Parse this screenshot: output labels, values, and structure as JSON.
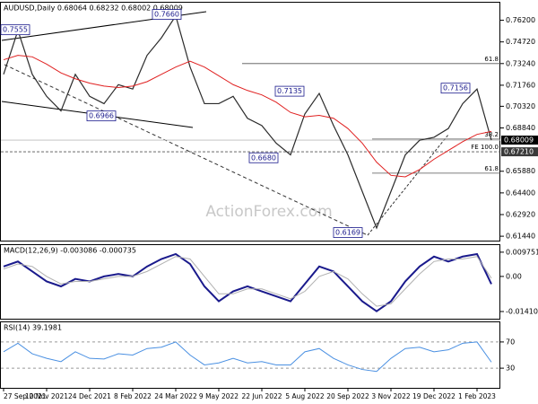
{
  "chart_data": [
    {
      "type": "line",
      "title": "AUDUSD,Daily  0.68064 0.68232 0.68002 0.68009",
      "watermark": "ActionForex.com",
      "categories": [
        "27 Sep 2021",
        null,
        null,
        "10 Nov 2021",
        null,
        null,
        "24 Dec 2021",
        null,
        null,
        "8 Feb 2022",
        null,
        null,
        "24 Mar 2022",
        null,
        null,
        "9 May 2022",
        null,
        null,
        "22 Jun 2022",
        null,
        null,
        "5 Aug 2022",
        null,
        null,
        "20 Sep 2022",
        null,
        null,
        "3 Nov 2022",
        null,
        null,
        "19 Dec 2022",
        null,
        null,
        "1 Feb 2023",
        null
      ],
      "series": [
        {
          "name": "Close",
          "color": "#2b2b2b",
          "values": [
            0.725,
            0.755,
            0.725,
            0.71,
            0.7,
            0.725,
            0.71,
            0.705,
            0.718,
            0.715,
            0.738,
            0.75,
            0.765,
            0.73,
            0.705,
            0.705,
            0.71,
            0.695,
            0.69,
            0.678,
            0.67,
            0.698,
            0.712,
            0.69,
            0.67,
            0.645,
            0.62,
            0.645,
            0.67,
            0.68,
            0.682,
            0.688,
            0.705,
            0.715,
            0.6801
          ]
        },
        {
          "name": "MA",
          "color": "#e02020",
          "values": [
            0.735,
            0.738,
            0.737,
            0.732,
            0.726,
            0.722,
            0.719,
            0.717,
            0.716,
            0.717,
            0.72,
            0.725,
            0.73,
            0.734,
            0.73,
            0.724,
            0.718,
            0.714,
            0.711,
            0.706,
            0.699,
            0.696,
            0.697,
            0.695,
            0.688,
            0.678,
            0.665,
            0.656,
            0.655,
            0.66,
            0.667,
            0.673,
            0.679,
            0.684,
            0.686
          ]
        }
      ],
      "ylim": [
        0.6114,
        0.774
      ],
      "yticks": [
        {
          "value": 0.762,
          "label": "0.76200"
        },
        {
          "value": 0.7472,
          "label": "0.74720"
        },
        {
          "value": 0.7324,
          "label": "0.73240"
        },
        {
          "value": 0.7176,
          "label": "0.71760"
        },
        {
          "value": 0.7032,
          "label": "0.70320"
        },
        {
          "value": 0.6884,
          "label": "0.68840"
        },
        {
          "value": 0.6588,
          "label": "0.65880"
        },
        {
          "value": 0.644,
          "label": "0.64400"
        },
        {
          "value": 0.6292,
          "label": "0.62920"
        },
        {
          "value": 0.6144,
          "label": "0.61440"
        }
      ],
      "levels": [
        {
          "label": "61.8",
          "value": 0.7324
        },
        {
          "label": "38.2",
          "value": 0.6808
        },
        {
          "label": "FE 100.0",
          "value": 0.6721,
          "price_label": "0.67210"
        },
        {
          "label": "61.8",
          "value": 0.6575
        }
      ],
      "last_price": {
        "value": 0.68009,
        "label": "0.68009"
      },
      "annotations": [
        {
          "label": "0.7555",
          "value": 0.7555
        },
        {
          "label": "0.7660",
          "value": 0.766
        },
        {
          "label": "0.6966",
          "value": 0.6966
        },
        {
          "label": "0.7135",
          "value": 0.7135
        },
        {
          "label": "0.6680",
          "value": 0.668
        },
        {
          "label": "0.7156",
          "value": 0.7156
        },
        {
          "label": "0.6169",
          "value": 0.6169
        }
      ]
    },
    {
      "type": "line",
      "title": "MACD(12,26,9) -0.003086 -0.000735",
      "series": [
        {
          "name": "MACD",
          "color": "#1a1a8c",
          "values": [
            0.004,
            0.006,
            0.002,
            -0.002,
            -0.004,
            -0.001,
            -0.002,
            0.0,
            0.001,
            0.0,
            0.004,
            0.007,
            0.009,
            0.005,
            -0.004,
            -0.01,
            -0.006,
            -0.004,
            -0.006,
            -0.008,
            -0.01,
            -0.003,
            0.004,
            0.002,
            -0.004,
            -0.01,
            -0.014,
            -0.01,
            -0.002,
            0.004,
            0.008,
            0.006,
            0.008,
            0.009,
            -0.003086
          ]
        },
        {
          "name": "Signal",
          "color": "#b0b0b0",
          "values": [
            0.003,
            0.005,
            0.004,
            0.0,
            -0.003,
            -0.002,
            -0.002,
            -0.001,
            0.0,
            0.0,
            0.002,
            0.005,
            0.008,
            0.007,
            0.0,
            -0.007,
            -0.007,
            -0.005,
            -0.005,
            -0.007,
            -0.009,
            -0.006,
            0.0,
            0.002,
            -0.001,
            -0.007,
            -0.012,
            -0.011,
            -0.005,
            0.001,
            0.006,
            0.007,
            0.007,
            0.008,
            -0.000735
          ]
        }
      ],
      "ylim": [
        -0.017,
        0.0126
      ],
      "yticks": [
        0.009751,
        {
          "value": 0,
          "label": "0.00"
        },
        -0.014107
      ]
    },
    {
      "type": "line",
      "title": "RSI(14) 39.1981",
      "series": [
        {
          "name": "RSI",
          "color": "#4a90e2",
          "values": [
            55,
            68,
            52,
            45,
            40,
            55,
            45,
            44,
            52,
            50,
            60,
            62,
            70,
            50,
            35,
            38,
            45,
            38,
            40,
            35,
            35,
            55,
            60,
            45,
            35,
            28,
            25,
            45,
            60,
            62,
            55,
            58,
            68,
            70,
            39.1981
          ]
        }
      ],
      "ylim": [
        0,
        100
      ],
      "yticks": [
        70,
        30
      ]
    }
  ]
}
